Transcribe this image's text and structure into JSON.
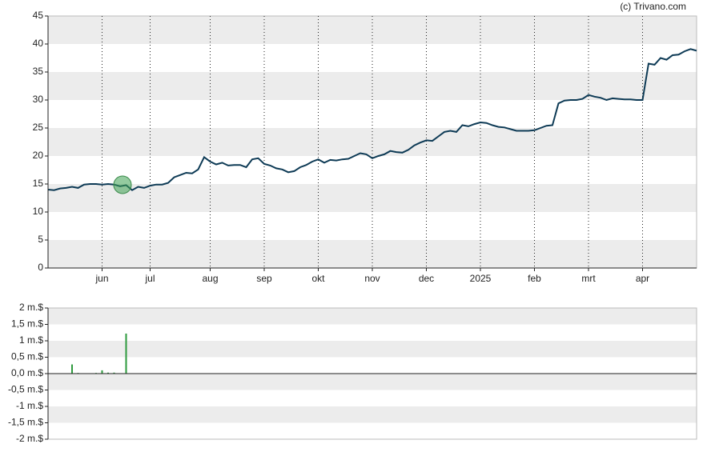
{
  "credit": "(c) Trivano.com",
  "chart_data": [
    {
      "type": "line",
      "grid": true,
      "color": "#0d3a55",
      "categories": [
        null,
        null,
        null,
        null,
        null,
        null,
        null,
        null,
        null,
        "jun",
        null,
        null,
        null,
        null,
        null,
        null,
        null,
        "jul",
        null,
        null,
        null,
        null,
        null,
        null,
        null,
        null,
        null,
        "aug",
        null,
        null,
        null,
        null,
        null,
        null,
        null,
        null,
        "sep",
        null,
        null,
        null,
        null,
        null,
        null,
        null,
        null,
        "okt",
        null,
        null,
        null,
        null,
        null,
        null,
        null,
        null,
        "nov",
        null,
        null,
        null,
        null,
        null,
        null,
        null,
        null,
        "dec",
        null,
        null,
        null,
        null,
        null,
        null,
        null,
        null,
        "2025",
        null,
        null,
        null,
        null,
        null,
        null,
        null,
        null,
        "feb",
        null,
        null,
        null,
        null,
        null,
        null,
        null,
        null,
        "mrt",
        null,
        null,
        null,
        null,
        null,
        null,
        null,
        null,
        "apr",
        null,
        null,
        null,
        null,
        null,
        null,
        null,
        null,
        null
      ],
      "values": [
        14,
        13.9,
        14.2,
        14.3,
        14.5,
        14.3,
        14.9,
        15,
        15,
        14.9,
        15,
        14.9,
        14.6,
        14.8,
        13.9,
        14.5,
        14.3,
        14.7,
        14.9,
        14.9,
        15.2,
        16.2,
        16.6,
        17,
        16.9,
        17.6,
        19.8,
        19,
        18.5,
        18.8,
        18.3,
        18.4,
        18.4,
        18,
        19.4,
        19.6,
        18.6,
        18.3,
        17.8,
        17.6,
        17.1,
        17.3,
        18,
        18.4,
        19,
        19.4,
        18.8,
        19.3,
        19.2,
        19.4,
        19.5,
        20,
        20.5,
        20.3,
        19.6,
        20,
        20.3,
        20.9,
        20.7,
        20.6,
        21.1,
        21.9,
        22.4,
        22.8,
        22.7,
        23.5,
        24.3,
        24.5,
        24.3,
        25.5,
        25.3,
        25.7,
        26,
        25.9,
        25.5,
        25.2,
        25.1,
        24.8,
        24.5,
        24.5,
        24.5,
        24.6,
        25,
        25.4,
        25.5,
        29.4,
        29.9,
        30,
        30,
        30.2,
        30.9,
        30.6,
        30.4,
        30,
        30.3,
        30.2,
        30.1,
        30.1,
        30,
        30,
        36.5,
        36.3,
        37.5,
        37.2,
        38,
        38.1,
        38.7,
        39.1,
        38.8
      ],
      "ylim": [
        0,
        45
      ],
      "yticks": [
        0,
        5,
        10,
        15,
        20,
        25,
        30,
        35,
        40,
        45
      ]
    },
    {
      "type": "bar",
      "grid": true,
      "color": "#2e9a3e",
      "values": [
        null,
        null,
        null,
        null,
        0.28,
        0.02,
        null,
        null,
        0.02,
        0.1,
        0.03,
        0.03,
        null,
        1.22,
        null,
        null,
        null,
        null,
        null,
        null,
        null,
        null,
        null,
        null,
        null,
        null,
        null,
        null,
        null,
        null,
        null,
        null,
        null,
        null,
        null,
        null,
        null,
        null,
        null,
        null,
        null,
        null,
        null,
        null,
        null,
        null,
        null,
        null,
        null,
        null,
        null,
        null,
        null,
        null,
        null,
        null,
        null,
        null,
        null,
        null,
        null,
        null,
        null,
        null,
        null,
        null,
        null,
        null,
        null,
        null,
        null,
        null,
        null,
        null,
        null,
        null,
        null,
        null,
        null,
        null,
        null,
        null,
        null,
        null,
        null,
        null,
        null,
        null,
        null,
        null,
        null,
        null,
        null,
        null,
        null,
        null,
        null,
        null,
        null,
        null,
        null,
        null,
        null,
        null,
        null,
        null,
        null,
        null,
        null
      ],
      "ylim": [
        -2,
        2
      ],
      "yticks": [
        {
          "value": -2,
          "label": "-2 m.$"
        },
        {
          "value": -1.5,
          "label": "-1,5 m.$"
        },
        {
          "value": -1,
          "label": "-1 m.$"
        },
        {
          "value": -0.5,
          "label": "-0,5 m.$"
        },
        {
          "value": 0,
          "label": "0,0 m.$"
        },
        {
          "value": 0.5,
          "label": "0,5 m.$"
        },
        {
          "value": 1,
          "label": "1 m.$"
        },
        {
          "value": 1.5,
          "label": "1,5 m.$"
        },
        {
          "value": 2,
          "label": "2 m.$"
        }
      ]
    }
  ]
}
